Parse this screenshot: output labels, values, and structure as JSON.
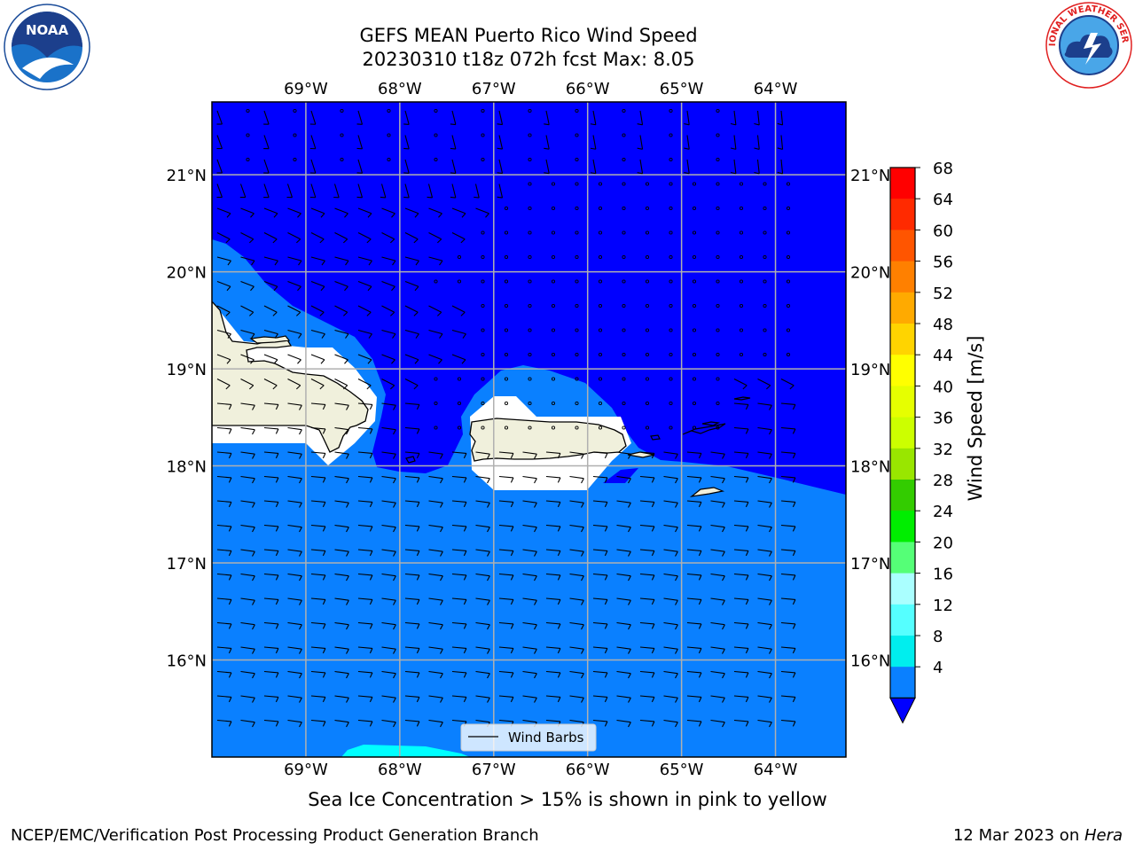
{
  "title": {
    "line1": "GEFS MEAN Puerto Rico Wind Speed",
    "line2": "20230310 t18z 072h fcst   Max: 8.05"
  },
  "map": {
    "lon_labels": [
      "69°W",
      "68°W",
      "67°W",
      "66°W",
      "65°W",
      "64°W"
    ],
    "lat_labels": [
      "21°N",
      "20°N",
      "19°N",
      "18°N",
      "17°N",
      "16°N"
    ],
    "lon_values": [
      -69,
      -68,
      -67,
      -66,
      -65,
      -64
    ],
    "lat_values": [
      21,
      20,
      19,
      18,
      17,
      16
    ],
    "extent": {
      "lon_min": -70.0,
      "lon_max": -63.25,
      "lat_min": 15.0,
      "lat_max": 21.75
    },
    "legend_label": "Wind Barbs",
    "colors": {
      "deep_blue": "#0000ff",
      "light_blue": "#0a80ff",
      "cyan": "#00ffff",
      "land": "#f0f0dc"
    }
  },
  "colorbar": {
    "label": "Wind Speed [m/s]",
    "ticks": [
      "68",
      "64",
      "60",
      "56",
      "52",
      "48",
      "44",
      "40",
      "36",
      "32",
      "28",
      "24",
      "20",
      "16",
      "12",
      "8",
      "4"
    ],
    "colors": [
      "#ff0000",
      "#ff2a00",
      "#ff5500",
      "#ff8000",
      "#ffaa00",
      "#ffd400",
      "#ffff00",
      "#e6ff00",
      "#ccff00",
      "#99e600",
      "#33cc00",
      "#00ee00",
      "#55ff77",
      "#aaffff",
      "#55ffff",
      "#00eeee",
      "#0a80ff"
    ],
    "under_color": "#0000ff"
  },
  "note": "Sea Ice Concentration > 15% is shown in pink to yellow",
  "footer": {
    "left": "NCEP/EMC/Verification Post Processing Product Generation Branch",
    "right_prefix": "12 Mar 2023 on ",
    "right_host": "Hera"
  },
  "logos": {
    "noaa_text": "NOAA",
    "nws_text": "NATIONAL WEATHER SERVICE"
  }
}
